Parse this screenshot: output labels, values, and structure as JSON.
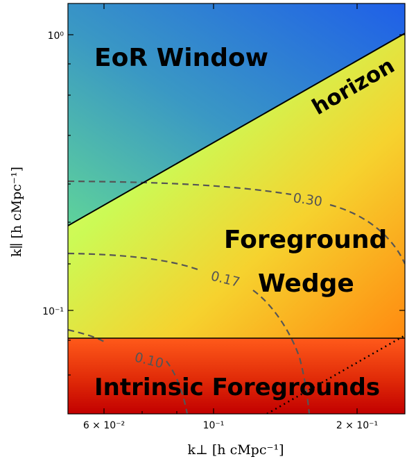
{
  "colors": {
    "eor_top_right": "#1f5fe8",
    "eor_left": "#5fd39a",
    "wedge_top_left": "#f2ff6a",
    "wedge_bottom_right": "#ff8a10",
    "intrinsic_top": "#ff5a1a",
    "intrinsic_bottom": "#c20000",
    "contour": "#555555",
    "lines": "#000000"
  },
  "regions": {
    "eor_window": "EoR Window",
    "horizon": "horizon",
    "foreground_wedge_line1": "Foreground",
    "foreground_wedge_line2": "Wedge",
    "intrinsic_foregrounds": "Intrinsic Foregrounds"
  },
  "contours": [
    {
      "label": "0.30"
    },
    {
      "label": "0.17"
    },
    {
      "label": "0.10"
    }
  ],
  "axes": {
    "x_label": "k⊥ [h cMpc⁻¹]",
    "y_label": "k∥ [h cMpc⁻¹]",
    "x_scale": "log",
    "y_scale": "log",
    "x_ticks": [
      {
        "label": "6 × 10⁻²"
      },
      {
        "label": "10⁻¹"
      },
      {
        "label": "2 × 10⁻¹"
      }
    ],
    "y_ticks": [
      {
        "label": "10⁰"
      },
      {
        "label": "10⁻¹"
      }
    ]
  }
}
